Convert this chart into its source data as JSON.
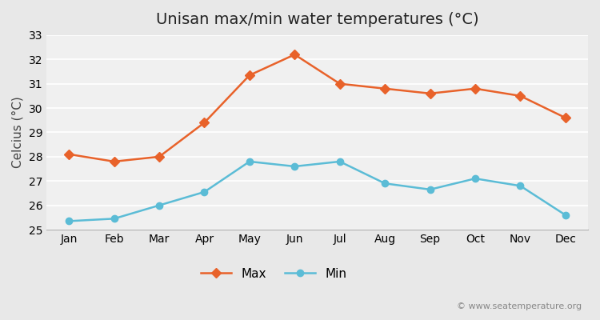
{
  "title": "Unisan max/min water temperatures (°C)",
  "ylabel": "Celcius (°C)",
  "months": [
    "Jan",
    "Feb",
    "Mar",
    "Apr",
    "May",
    "Jun",
    "Jul",
    "Aug",
    "Sep",
    "Oct",
    "Nov",
    "Dec"
  ],
  "max_temps": [
    28.1,
    27.8,
    28.0,
    29.4,
    31.35,
    32.2,
    31.0,
    30.8,
    30.6,
    30.8,
    30.5,
    29.6
  ],
  "min_temps": [
    25.35,
    25.45,
    26.0,
    26.55,
    27.8,
    27.6,
    27.8,
    26.9,
    26.65,
    27.1,
    26.8,
    25.6
  ],
  "max_color": "#e8622a",
  "min_color": "#5bbcd6",
  "bg_color": "#e8e8e8",
  "plot_bg_color": "#f0f0f0",
  "ylim": [
    25,
    33
  ],
  "yticks": [
    25,
    26,
    27,
    28,
    29,
    30,
    31,
    32,
    33
  ],
  "legend_labels": [
    "Max",
    "Min"
  ],
  "watermark": "© www.seatemperature.org",
  "title_fontsize": 14,
  "label_fontsize": 11,
  "tick_fontsize": 10,
  "watermark_fontsize": 8
}
